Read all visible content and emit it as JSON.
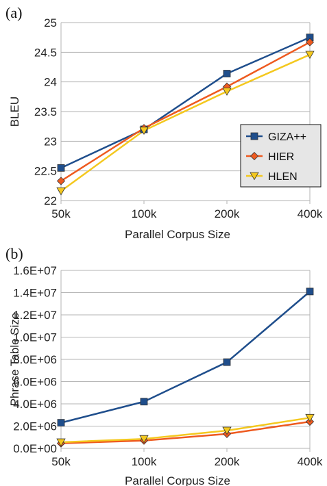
{
  "colors": {
    "giza": "#1f4e8c",
    "hier": "#ee5a1f",
    "hlen": "#f4c81e",
    "grid": "#b3b3b3",
    "legend_bg": "#e6e6e6"
  },
  "chart_data": [
    {
      "type": "line",
      "panel_label": "(a)",
      "title": "",
      "xlabel": "Parallel Corpus Size",
      "ylabel": "BLEU",
      "categories": [
        "50k",
        "100k",
        "200k",
        "400k"
      ],
      "ylim": [
        22,
        25
      ],
      "yticks": [
        "22",
        "22.5",
        "23",
        "23.5",
        "24",
        "24.5",
        "25"
      ],
      "ytick_values": [
        22,
        22.5,
        23,
        23.5,
        24,
        24.5,
        25
      ],
      "grid": "horizontal",
      "legend": "right",
      "series": [
        {
          "name": "GIZA++",
          "marker": "square",
          "values": [
            22.55,
            23.2,
            24.14,
            24.75
          ]
        },
        {
          "name": "HIER",
          "marker": "diamond",
          "values": [
            22.33,
            23.22,
            23.92,
            24.67
          ]
        },
        {
          "name": "HLEN",
          "marker": "triangle-down",
          "values": [
            22.16,
            23.18,
            23.84,
            24.46
          ]
        }
      ]
    },
    {
      "type": "line",
      "panel_label": "(b)",
      "title": "",
      "xlabel": "Parallel Corpus Size",
      "ylabel": "Phrase Table Size",
      "categories": [
        "50k",
        "100k",
        "200k",
        "400k"
      ],
      "ylim": [
        0,
        16000000
      ],
      "yticks": [
        "0.0E+00",
        "2.0E+06",
        "4.0E+06",
        "6.0E+06",
        "8.0E+06",
        "1.0E+07",
        "1.2E+07",
        "1.4E+07",
        "1.6E+07"
      ],
      "ytick_values": [
        0,
        2000000,
        4000000,
        6000000,
        8000000,
        10000000,
        12000000,
        14000000,
        16000000
      ],
      "grid": "horizontal",
      "legend": "none",
      "series": [
        {
          "name": "GIZA++",
          "marker": "square",
          "values": [
            2300000,
            4200000,
            7750000,
            14100000
          ]
        },
        {
          "name": "HIER",
          "marker": "diamond",
          "values": [
            450000,
            700000,
            1300000,
            2400000
          ]
        },
        {
          "name": "HLEN",
          "marker": "triangle-down",
          "values": [
            550000,
            850000,
            1600000,
            2750000
          ]
        }
      ]
    }
  ]
}
